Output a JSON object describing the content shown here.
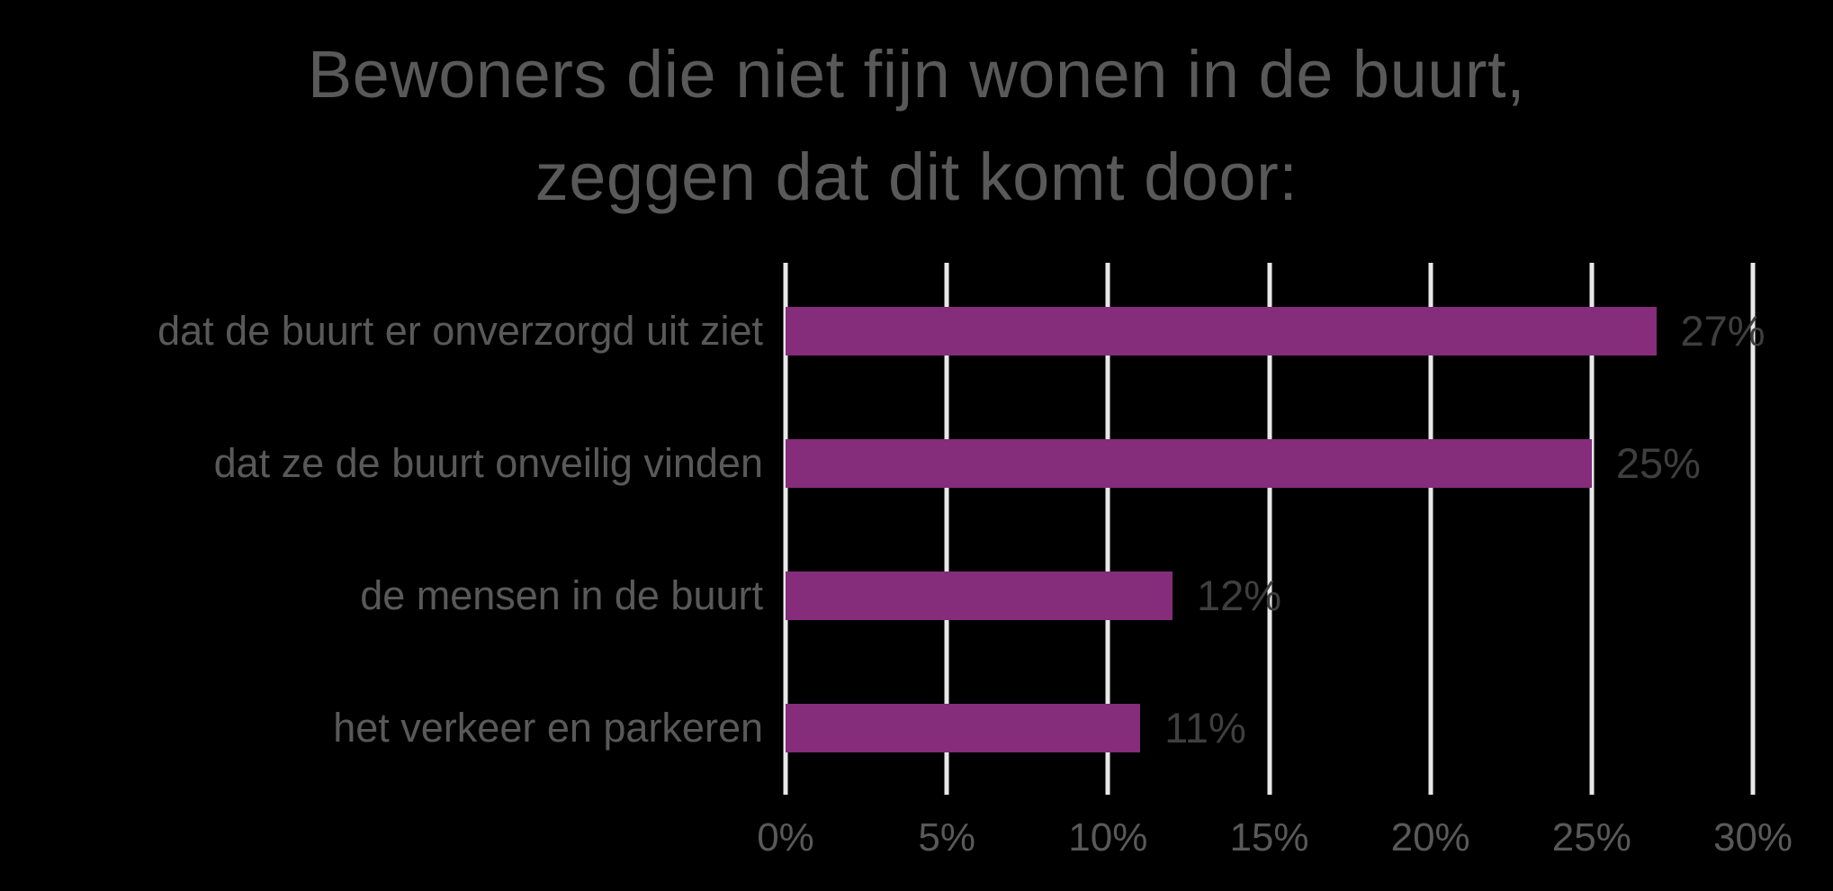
{
  "background_color": "#000000",
  "title": {
    "line1": "Bewoners die niet fijn wonen in de buurt,",
    "line2": "zeggen dat dit komt door:"
  },
  "chart_data": {
    "type": "bar",
    "orientation": "horizontal",
    "title": "Bewoners die niet fijn wonen in de buurt, zeggen dat dit komt door:",
    "categories": [
      "dat de buurt er onverzorgd uit ziet",
      "dat ze de buurt onveilig vinden",
      "de mensen in de buurt",
      "het verkeer en parkeren"
    ],
    "values": [
      27,
      25,
      12,
      11
    ],
    "value_labels": [
      "27%",
      "25%",
      "12%",
      "11%"
    ],
    "x_tick_labels": [
      "0%",
      "5%",
      "10%",
      "15%",
      "20%",
      "25%",
      "30%"
    ],
    "x_tick_values": [
      0,
      5,
      10,
      15,
      20,
      25,
      30
    ],
    "xlim": [
      0,
      30
    ],
    "xlabel": "",
    "ylabel": "",
    "grid": "vertical",
    "legend": "none",
    "colors": {
      "bar": "#852C7B",
      "gridline": "#E8E8E8",
      "title_text": "#595959",
      "category_text": "#595959",
      "tick_text": "#595959",
      "value_text": "#3F3F3F",
      "background": "#000000"
    }
  }
}
